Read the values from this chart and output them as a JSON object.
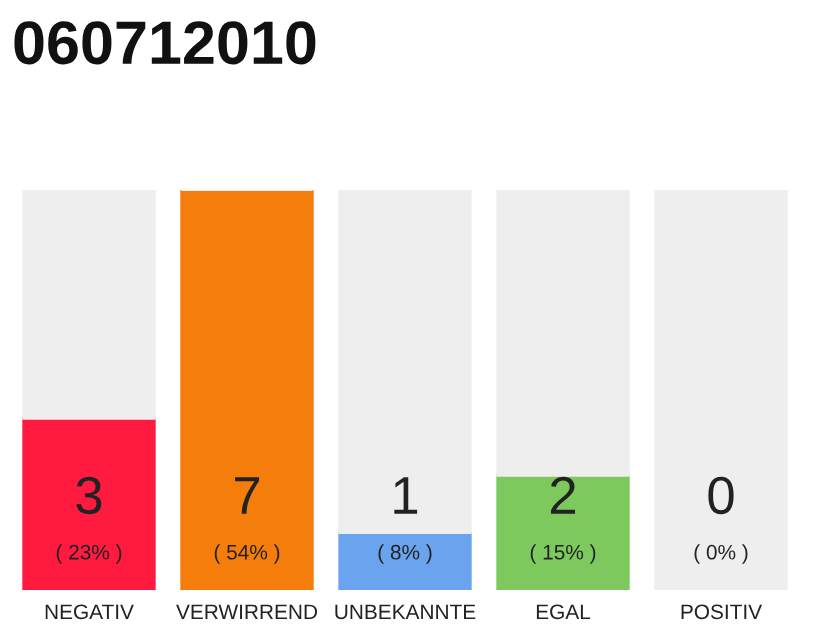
{
  "chart_data": {
    "type": "bar",
    "title": "060712010",
    "stacked": true,
    "categories": [
      "NEGATIV",
      "VERWIRREND",
      "UNBEKANNTE",
      "EGAL",
      "POSITIV"
    ],
    "series": [
      {
        "values": [
          3,
          7,
          1,
          2,
          0
        ],
        "colors": [
          "#ff1a40",
          "#f47d0c",
          "#6aa3ee",
          "#7dc95e",
          "#d0d0d0"
        ],
        "value_labels": [
          "3",
          "7",
          "1",
          "2",
          "0"
        ]
      },
      {
        "values": [
          4,
          0,
          6,
          5,
          7
        ],
        "color": "#eeeeee",
        "value_labels": [
          null,
          null,
          null,
          null,
          null
        ]
      }
    ],
    "annotations": [
      "( 23% )",
      "( 54% )",
      "( 8% )",
      "( 15% )",
      "( 0% )"
    ],
    "grid": false,
    "legend": false
  }
}
